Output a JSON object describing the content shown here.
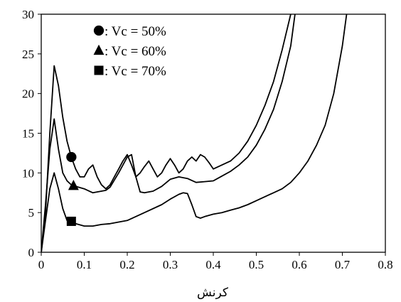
{
  "chart_data": {
    "type": "line",
    "xlabel": "کرنش",
    "ylabel": "",
    "xlim": [
      0,
      0.8
    ],
    "ylim": [
      0,
      30
    ],
    "xticks": [
      "0",
      "0.1",
      "0.2",
      "0.3",
      "0.4",
      "0.5",
      "0.6",
      "0.7",
      "0.8"
    ],
    "yticks": [
      "0",
      "5",
      "10",
      "15",
      "20",
      "25",
      "30"
    ],
    "grid": false,
    "legend_placement": "top-left",
    "legend": [
      {
        "marker": "circle",
        "text": ": Vc = 50%"
      },
      {
        "marker": "triangle",
        "text": ": Vc = 60%"
      },
      {
        "marker": "square",
        "text": ": Vc = 70%"
      }
    ],
    "series": [
      {
        "marker": "circle",
        "marker_at": [
          0.07,
          12.0
        ],
        "x": [
          0,
          0.01,
          0.02,
          0.03,
          0.04,
          0.05,
          0.06,
          0.07,
          0.08,
          0.09,
          0.1,
          0.11,
          0.12,
          0.13,
          0.14,
          0.15,
          0.16,
          0.17,
          0.18,
          0.19,
          0.2,
          0.21,
          0.22,
          0.23,
          0.24,
          0.25,
          0.26,
          0.27,
          0.28,
          0.29,
          0.3,
          0.31,
          0.32,
          0.33,
          0.34,
          0.35,
          0.36,
          0.37,
          0.38,
          0.39,
          0.4,
          0.42,
          0.44,
          0.46,
          0.48,
          0.5,
          0.52,
          0.54,
          0.56,
          0.58
        ],
        "values": [
          0,
          5,
          15,
          23.5,
          21,
          17,
          14,
          12,
          10.5,
          9.5,
          9.5,
          10.5,
          11,
          9.5,
          8.5,
          8,
          8.5,
          9.5,
          10.5,
          11.5,
          12.3,
          11,
          9.5,
          10,
          10.8,
          11.5,
          10.5,
          9.5,
          10,
          11,
          11.8,
          11,
          10,
          10.5,
          11.5,
          12,
          11.5,
          12.3,
          12,
          11.3,
          10.5,
          11,
          11.5,
          12.5,
          14,
          16,
          18.5,
          21.5,
          25.5,
          30
        ]
      },
      {
        "marker": "triangle",
        "marker_at": [
          0.075,
          8.4
        ],
        "x": [
          0,
          0.01,
          0.02,
          0.03,
          0.04,
          0.05,
          0.06,
          0.07,
          0.08,
          0.1,
          0.12,
          0.14,
          0.15,
          0.16,
          0.18,
          0.2,
          0.21,
          0.22,
          0.23,
          0.24,
          0.26,
          0.28,
          0.3,
          0.32,
          0.34,
          0.36,
          0.38,
          0.4,
          0.42,
          0.44,
          0.46,
          0.48,
          0.5,
          0.52,
          0.54,
          0.56,
          0.58,
          0.59
        ],
        "values": [
          0,
          6,
          13,
          16.8,
          13,
          10,
          9,
          8.5,
          8.3,
          8,
          7.5,
          7.7,
          7.8,
          8.2,
          10,
          12,
          12.3,
          9.5,
          7.6,
          7.5,
          7.7,
          8.3,
          9.2,
          9.5,
          9.3,
          8.8,
          8.9,
          9,
          9.6,
          10.2,
          11,
          12,
          13.5,
          15.5,
          18,
          21.5,
          26,
          30
        ]
      },
      {
        "marker": "square",
        "marker_at": [
          0.07,
          3.9
        ],
        "x": [
          0,
          0.01,
          0.02,
          0.03,
          0.04,
          0.05,
          0.06,
          0.08,
          0.1,
          0.12,
          0.14,
          0.16,
          0.2,
          0.24,
          0.28,
          0.3,
          0.32,
          0.33,
          0.34,
          0.35,
          0.36,
          0.37,
          0.38,
          0.4,
          0.42,
          0.44,
          0.46,
          0.48,
          0.5,
          0.52,
          0.54,
          0.56,
          0.58,
          0.6,
          0.62,
          0.64,
          0.66,
          0.68,
          0.7,
          0.71
        ],
        "values": [
          0,
          4,
          8,
          10,
          8,
          5.5,
          4,
          3.6,
          3.3,
          3.3,
          3.5,
          3.6,
          4,
          5,
          6,
          6.7,
          7.3,
          7.5,
          7.4,
          6,
          4.5,
          4.3,
          4.5,
          4.8,
          5,
          5.3,
          5.6,
          6,
          6.5,
          7,
          7.5,
          8,
          8.8,
          10,
          11.5,
          13.5,
          16,
          20,
          26,
          30
        ]
      }
    ]
  }
}
